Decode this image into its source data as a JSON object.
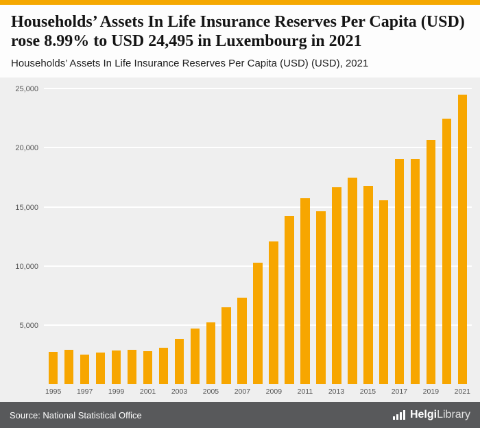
{
  "colors": {
    "accent": "#F5A800",
    "bar": "#F7A600",
    "chart_background": "#EFEFEF",
    "footer_background": "#58595B"
  },
  "header": {
    "title": "Households’ Assets In Life Insurance Reserves Per Capita (USD) rose 8.99% to USD 24,495 in Luxembourg in 2021",
    "subtitle": "Households’ Assets In Life Insurance Reserves Per Capita (USD) (USD), 2021"
  },
  "chart_data": {
    "type": "bar",
    "title": "Households’ Assets In Life Insurance Reserves Per Capita (USD) (USD), 2021",
    "xlabel": "",
    "ylabel": "",
    "ylim": [
      0,
      25000
    ],
    "grid": true,
    "legend": "none",
    "bar_color": "#F7A600",
    "categories": [
      "1995",
      "1996",
      "1997",
      "1998",
      "1999",
      "2000",
      "2001",
      "2002",
      "2003",
      "2004",
      "2005",
      "2006",
      "2007",
      "2008",
      "2009",
      "2010",
      "2011",
      "2012",
      "2013",
      "2014",
      "2015",
      "2016",
      "2017",
      "2018",
      "2019",
      "2020",
      "2021"
    ],
    "values": [
      2750,
      2900,
      2500,
      2650,
      2850,
      2900,
      2800,
      3100,
      3850,
      4700,
      5200,
      6500,
      7300,
      10300,
      12100,
      14200,
      15750,
      14650,
      16650,
      17450,
      16750,
      15550,
      19050,
      19050,
      20650,
      22450,
      24495
    ],
    "xtick_every": 2,
    "yticks": [
      {
        "value": 5000,
        "label": "5,000"
      },
      {
        "value": 10000,
        "label": "10,000"
      },
      {
        "value": 15000,
        "label": "15,000"
      },
      {
        "value": 20000,
        "label": "20,000"
      },
      {
        "value": 25000,
        "label": "25,000"
      }
    ]
  },
  "footer": {
    "source": "Source: National Statistical Office",
    "logo_bold": "Helgi",
    "logo_light": "Library"
  }
}
